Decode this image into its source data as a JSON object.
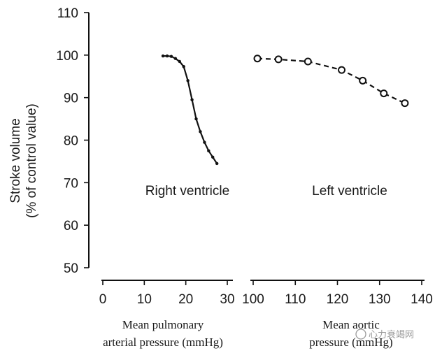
{
  "chart_data": {
    "type": "line",
    "ylabel": [
      "Stroke volume",
      "(% of control value)"
    ],
    "ylim": [
      50,
      110
    ],
    "yticks": [
      50,
      60,
      70,
      80,
      90,
      100,
      110
    ],
    "panels": [
      {
        "name": "Right ventricle",
        "xlabel": [
          "Mean pulmonary",
          "arterial pressure (mmHg)"
        ],
        "xlim": [
          0,
          30
        ],
        "xticks": [
          0,
          10,
          20,
          30
        ],
        "series": {
          "x": [
            14.5,
            15.5,
            16.5,
            17.5,
            18.5,
            19.5,
            20.5,
            21.5,
            22.5,
            23.5,
            24.5,
            25.5,
            26.5,
            27.5
          ],
          "y": [
            99.8,
            99.8,
            99.7,
            99.2,
            98.5,
            97.3,
            94.0,
            89.5,
            85.0,
            82.0,
            79.5,
            77.5,
            76.0,
            74.5
          ],
          "style": "solid",
          "marker": "dot"
        }
      },
      {
        "name": "Left ventricle",
        "xlabel": [
          "Mean aortic",
          "pressure (mmHg)"
        ],
        "xlim": [
          100,
          140
        ],
        "xticks": [
          100,
          110,
          120,
          130,
          140
        ],
        "series": {
          "x": [
            101,
            106,
            113,
            121,
            126,
            131,
            136
          ],
          "y": [
            99.2,
            99.0,
            98.5,
            96.5,
            94.0,
            91.0,
            88.7
          ],
          "style": "dashed",
          "marker": "open-circle"
        }
      }
    ]
  },
  "watermark": "心力衰竭网"
}
